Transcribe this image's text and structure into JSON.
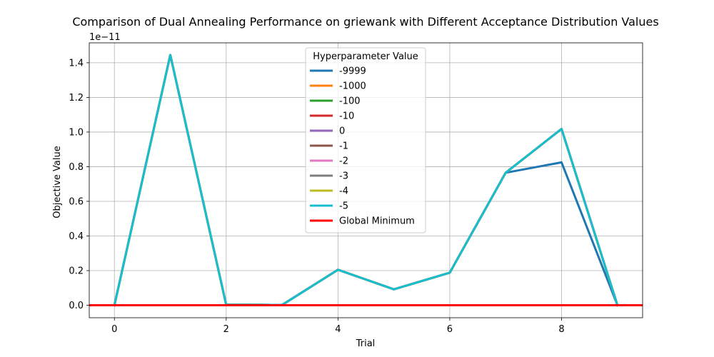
{
  "chart_data": {
    "type": "line",
    "title": "Comparison of Dual Annealing Performance on griewank with Different Acceptance Distribution Values",
    "xlabel": "Trial",
    "ylabel": "Objective Value",
    "y_offset_label": "1e−11",
    "xlim": [
      -0.45,
      9.45
    ],
    "ylim": [
      -0.072,
      1.515
    ],
    "x_ticks": [
      0,
      2,
      4,
      6,
      8
    ],
    "x_tick_labels": [
      "0",
      "2",
      "4",
      "6",
      "8"
    ],
    "y_ticks": [
      0.0,
      0.2,
      0.4,
      0.6,
      0.8,
      1.0,
      1.2,
      1.4
    ],
    "y_tick_labels": [
      "0.0",
      "0.2",
      "0.4",
      "0.6",
      "0.8",
      "1.0",
      "1.2",
      "1.4"
    ],
    "grid": true,
    "legend_title": "Hyperparameter Value",
    "legend_position": "upper-center",
    "x": [
      0,
      1,
      2,
      3,
      4,
      5,
      6,
      7,
      8,
      9
    ],
    "series": [
      {
        "name": "-9999",
        "color": "#1f77b4",
        "values": [
          0.0,
          1.445,
          0.003,
          0.002,
          0.205,
          0.092,
          0.188,
          0.765,
          0.825,
          0.0
        ]
      },
      {
        "name": "-1000",
        "color": "#ff7f0e",
        "values": [
          0.0,
          1.445,
          0.003,
          0.002,
          0.205,
          0.092,
          0.188,
          0.765,
          1.018,
          0.0
        ]
      },
      {
        "name": "-100",
        "color": "#2ca02c",
        "values": [
          0.0,
          1.445,
          0.003,
          0.002,
          0.205,
          0.092,
          0.188,
          0.765,
          1.018,
          0.0
        ]
      },
      {
        "name": "-10",
        "color": "#d62728",
        "values": [
          0.0,
          1.445,
          0.003,
          0.002,
          0.205,
          0.092,
          0.188,
          0.765,
          1.018,
          0.0
        ]
      },
      {
        "name": "0",
        "color": "#9467bd",
        "values": [
          0.0,
          1.445,
          0.003,
          0.002,
          0.205,
          0.092,
          0.188,
          0.765,
          1.018,
          0.0
        ]
      },
      {
        "name": "-1",
        "color": "#8c564b",
        "values": [
          0.0,
          1.445,
          0.003,
          0.002,
          0.205,
          0.092,
          0.188,
          0.765,
          1.018,
          0.0
        ]
      },
      {
        "name": "-2",
        "color": "#e377c2",
        "values": [
          0.0,
          1.445,
          0.003,
          0.002,
          0.205,
          0.092,
          0.188,
          0.765,
          1.018,
          0.0
        ]
      },
      {
        "name": "-3",
        "color": "#7f7f7f",
        "values": [
          0.0,
          1.445,
          0.003,
          0.002,
          0.205,
          0.092,
          0.188,
          0.765,
          1.018,
          0.0
        ]
      },
      {
        "name": "-4",
        "color": "#bcbd22",
        "values": [
          0.0,
          1.445,
          0.003,
          0.002,
          0.205,
          0.092,
          0.188,
          0.765,
          1.018,
          0.0
        ]
      },
      {
        "name": "-5",
        "color": "#17becf",
        "values": [
          0.0,
          1.445,
          0.003,
          0.002,
          0.205,
          0.092,
          0.188,
          0.765,
          1.018,
          0.0
        ]
      }
    ],
    "reference_line": {
      "name": "Global Minimum",
      "color": "#ff0000",
      "y": 0.0
    }
  }
}
